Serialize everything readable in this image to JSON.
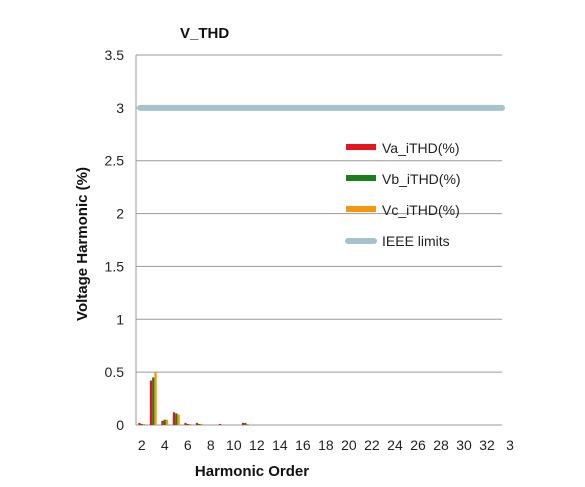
{
  "chart_data": {
    "type": "bar",
    "title": "V_THD",
    "xlabel": "Harmonic Order",
    "ylabel": "Voltage Harmonic (%)",
    "ylim": [
      0,
      3.5
    ],
    "yticks": [
      "0",
      "0.5",
      "1",
      "1.5",
      "2",
      "2.5",
      "3",
      "3.5"
    ],
    "xticks": [
      "2",
      "4",
      "6",
      "8",
      "10",
      "12",
      "14",
      "16",
      "18",
      "20",
      "22",
      "24",
      "26",
      "28",
      "30",
      "32",
      "3"
    ],
    "x": [
      2,
      3,
      4,
      5,
      6,
      7,
      8,
      9,
      10,
      11,
      12,
      13,
      14,
      15,
      16,
      17,
      18,
      19,
      20,
      21,
      22,
      23,
      24,
      25,
      26,
      27,
      28,
      29,
      30,
      31,
      32,
      33
    ],
    "series": [
      {
        "name": "Va_iTHD(%)",
        "color": "#e8141c",
        "values": [
          0.02,
          0.42,
          0.04,
          0.12,
          0.02,
          0.02,
          0.0,
          0.01,
          0.0,
          0.02,
          0.0,
          0.0,
          0.0,
          0.0,
          0.0,
          0.0,
          0.0,
          0.0,
          0.0,
          0.0,
          0.0,
          0.0,
          0.0,
          0.0,
          0.0,
          0.0,
          0.0,
          0.0,
          0.0,
          0.0,
          0.0,
          0.0
        ]
      },
      {
        "name": "Vb_iTHD(%)",
        "color": "#1a7f1a",
        "values": [
          0.01,
          0.45,
          0.05,
          0.11,
          0.01,
          0.01,
          0.0,
          0.0,
          0.0,
          0.02,
          0.0,
          0.0,
          0.0,
          0.0,
          0.0,
          0.0,
          0.0,
          0.0,
          0.0,
          0.0,
          0.0,
          0.0,
          0.0,
          0.0,
          0.0,
          0.0,
          0.0,
          0.0,
          0.0,
          0.0,
          0.0,
          0.0
        ]
      },
      {
        "name": "Vc_iTHD(%)",
        "color": "#f5960f",
        "values": [
          0.01,
          0.5,
          0.05,
          0.1,
          0.01,
          0.01,
          0.0,
          0.0,
          0.0,
          0.01,
          0.0,
          0.0,
          0.0,
          0.0,
          0.0,
          0.0,
          0.0,
          0.0,
          0.0,
          0.0,
          0.0,
          0.0,
          0.0,
          0.0,
          0.0,
          0.0,
          0.0,
          0.0,
          0.0,
          0.0,
          0.0,
          0.0
        ]
      }
    ],
    "limit_line": {
      "name": "IEEE limits",
      "value": 3,
      "color": "#a6c3cc"
    },
    "grid": true,
    "legend_position": "right"
  }
}
